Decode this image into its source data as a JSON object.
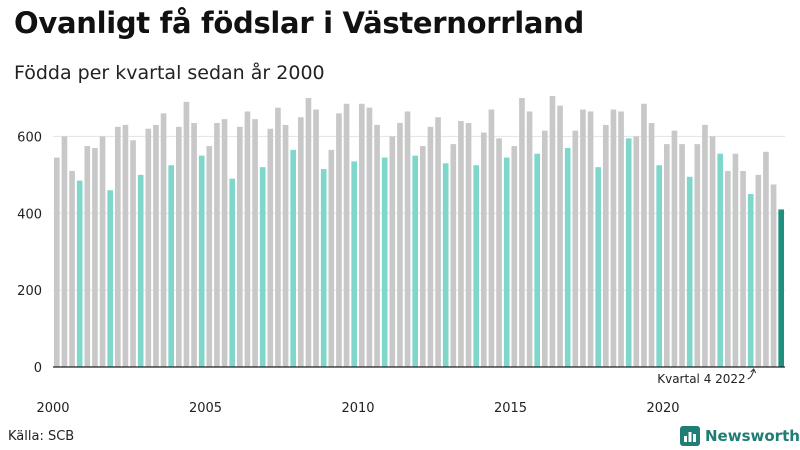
{
  "title": "Ovanligt få födslar i Västernorrland",
  "subtitle": "Födda per kvartal sedan år 2000",
  "source": "Källa: SCB",
  "brand": {
    "name": "Newsworthy",
    "icon": "bar-chart-logo-icon",
    "color": "#1f7d74"
  },
  "colors": {
    "regular": "#c8c8c8",
    "quarter4": "#7fd6cb",
    "latest": "#1f8f80"
  },
  "chart_data": {
    "type": "bar",
    "title": "Ovanligt få födslar i Västernorrland",
    "subtitle": "Födda per kvartal sedan år 2000",
    "xlabel": "",
    "ylabel": "",
    "ylim": [
      0,
      700
    ],
    "yticks": [
      0,
      200,
      400,
      600
    ],
    "xticks": [
      "2000",
      "2005",
      "2010",
      "2015",
      "2020"
    ],
    "grid": true,
    "legend": "none",
    "annotation": {
      "text": "Kvartal 4 2022",
      "target_index": 91
    },
    "highlight": "quarter 4 bars in turquoise, latest quarter in dark teal",
    "categories": [
      "2000 K1",
      "2000 K2",
      "2000 K3",
      "2000 K4",
      "2001 K1",
      "2001 K2",
      "2001 K3",
      "2001 K4",
      "2002 K1",
      "2002 K2",
      "2002 K3",
      "2002 K4",
      "2003 K1",
      "2003 K2",
      "2003 K3",
      "2003 K4",
      "2004 K1",
      "2004 K2",
      "2004 K3",
      "2004 K4",
      "2005 K1",
      "2005 K2",
      "2005 K3",
      "2005 K4",
      "2006 K1",
      "2006 K2",
      "2006 K3",
      "2006 K4",
      "2007 K1",
      "2007 K2",
      "2007 K3",
      "2007 K4",
      "2008 K1",
      "2008 K2",
      "2008 K3",
      "2008 K4",
      "2009 K1",
      "2009 K2",
      "2009 K3",
      "2009 K4",
      "2010 K1",
      "2010 K2",
      "2010 K3",
      "2010 K4",
      "2011 K1",
      "2011 K2",
      "2011 K3",
      "2011 K4",
      "2012 K1",
      "2012 K2",
      "2012 K3",
      "2012 K4",
      "2013 K1",
      "2013 K2",
      "2013 K3",
      "2013 K4",
      "2014 K1",
      "2014 K2",
      "2014 K3",
      "2014 K4",
      "2015 K1",
      "2015 K2",
      "2015 K3",
      "2015 K4",
      "2016 K1",
      "2016 K2",
      "2016 K3",
      "2016 K4",
      "2017 K1",
      "2017 K2",
      "2017 K3",
      "2017 K4",
      "2018 K1",
      "2018 K2",
      "2018 K3",
      "2018 K4",
      "2019 K1",
      "2019 K2",
      "2019 K3",
      "2019 K4",
      "2020 K1",
      "2020 K2",
      "2020 K3",
      "2020 K4",
      "2021 K1",
      "2021 K2",
      "2021 K3",
      "2021 K4",
      "2022 K1",
      "2022 K2",
      "2022 K3",
      "2022 K4",
      "2023 K1",
      "2023 K2",
      "2023 K3",
      "2023 K4"
    ],
    "values": [
      545,
      600,
      510,
      485,
      575,
      570,
      600,
      460,
      625,
      630,
      590,
      500,
      620,
      630,
      660,
      525,
      625,
      690,
      635,
      550,
      575,
      635,
      645,
      490,
      625,
      665,
      645,
      520,
      620,
      675,
      630,
      565,
      650,
      700,
      670,
      515,
      565,
      660,
      685,
      535,
      685,
      675,
      630,
      545,
      600,
      635,
      665,
      550,
      575,
      625,
      650,
      530,
      580,
      640,
      635,
      525,
      610,
      670,
      595,
      545,
      575,
      700,
      665,
      555,
      615,
      705,
      680,
      570,
      615,
      670,
      665,
      520,
      630,
      670,
      665,
      595,
      600,
      685,
      635,
      525,
      580,
      615,
      580,
      495,
      580,
      630,
      600,
      555,
      510,
      555,
      510,
      450,
      500,
      560,
      475,
      410
    ]
  }
}
